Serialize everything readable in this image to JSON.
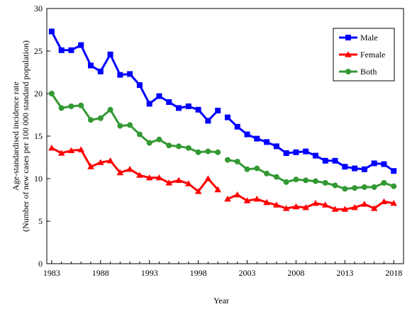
{
  "chart_data": {
    "type": "line",
    "title": "",
    "xlabel": "Year",
    "ylabel_lines": [
      "Age-standardised incidence rate",
      "(Number of new cases per 100 000 standard population)"
    ],
    "xlim": [
      1982.5,
      2019
    ],
    "ylim": [
      0,
      30
    ],
    "yticks": [
      0,
      5,
      10,
      15,
      20,
      25,
      30
    ],
    "xticks": [
      1983,
      1988,
      1993,
      1998,
      2003,
      2008,
      2013,
      2018
    ],
    "legend_position": "top-right",
    "grid": false,
    "series": [
      {
        "name": "Male",
        "color": "#0000ff",
        "marker": "square",
        "segments": [
          [
            [
              1983,
              27.3
            ],
            [
              1984,
              25.1
            ],
            [
              1985,
              25.1
            ],
            [
              1986,
              25.7
            ],
            [
              1987,
              23.3
            ],
            [
              1988,
              22.6
            ],
            [
              1989,
              24.6
            ],
            [
              1990,
              22.2
            ],
            [
              1991,
              22.3
            ],
            [
              1992,
              21.0
            ],
            [
              1993,
              18.8
            ],
            [
              1994,
              19.7
            ],
            [
              1995,
              19.0
            ],
            [
              1996,
              18.3
            ],
            [
              1997,
              18.5
            ],
            [
              1998,
              18.1
            ],
            [
              1999,
              16.8
            ],
            [
              2000,
              18.0
            ]
          ],
          [
            [
              2001,
              17.2
            ],
            [
              2002,
              16.1
            ],
            [
              2003,
              15.2
            ],
            [
              2004,
              14.7
            ],
            [
              2005,
              14.3
            ],
            [
              2006,
              13.8
            ],
            [
              2007,
              13.0
            ],
            [
              2008,
              13.1
            ],
            [
              2009,
              13.2
            ],
            [
              2010,
              12.7
            ],
            [
              2011,
              12.1
            ],
            [
              2012,
              12.1
            ],
            [
              2013,
              11.4
            ],
            [
              2014,
              11.2
            ],
            [
              2015,
              11.1
            ],
            [
              2016,
              11.8
            ],
            [
              2017,
              11.7
            ],
            [
              2018,
              10.9
            ]
          ]
        ]
      },
      {
        "name": "Female",
        "color": "#ff0000",
        "marker": "triangle",
        "segments": [
          [
            [
              1983,
              13.6
            ],
            [
              1984,
              13.0
            ],
            [
              1985,
              13.3
            ],
            [
              1986,
              13.4
            ],
            [
              1987,
              11.4
            ],
            [
              1988,
              11.9
            ],
            [
              1989,
              12.1
            ],
            [
              1990,
              10.7
            ],
            [
              1991,
              11.1
            ],
            [
              1992,
              10.4
            ],
            [
              1993,
              10.1
            ],
            [
              1994,
              10.1
            ],
            [
              1995,
              9.5
            ],
            [
              1996,
              9.8
            ],
            [
              1997,
              9.4
            ],
            [
              1998,
              8.5
            ],
            [
              1999,
              10.0
            ],
            [
              2000,
              8.7
            ]
          ],
          [
            [
              2001,
              7.6
            ],
            [
              2002,
              8.1
            ],
            [
              2003,
              7.4
            ],
            [
              2004,
              7.6
            ],
            [
              2005,
              7.2
            ],
            [
              2006,
              6.9
            ],
            [
              2007,
              6.5
            ],
            [
              2008,
              6.7
            ],
            [
              2009,
              6.6
            ],
            [
              2010,
              7.1
            ],
            [
              2011,
              6.9
            ],
            [
              2012,
              6.4
            ],
            [
              2013,
              6.4
            ],
            [
              2014,
              6.6
            ],
            [
              2015,
              7.0
            ],
            [
              2016,
              6.5
            ],
            [
              2017,
              7.3
            ],
            [
              2018,
              7.1
            ]
          ]
        ]
      },
      {
        "name": "Both",
        "color": "#339933",
        "marker": "circle",
        "segments": [
          [
            [
              1983,
              20.0
            ],
            [
              1984,
              18.3
            ],
            [
              1985,
              18.5
            ],
            [
              1986,
              18.6
            ],
            [
              1987,
              16.9
            ],
            [
              1988,
              17.1
            ],
            [
              1989,
              18.1
            ],
            [
              1990,
              16.2
            ],
            [
              1991,
              16.3
            ],
            [
              1992,
              15.2
            ],
            [
              1993,
              14.2
            ],
            [
              1994,
              14.6
            ],
            [
              1995,
              13.9
            ],
            [
              1996,
              13.8
            ],
            [
              1997,
              13.6
            ],
            [
              1998,
              13.1
            ],
            [
              1999,
              13.2
            ],
            [
              2000,
              13.1
            ]
          ],
          [
            [
              2001,
              12.2
            ],
            [
              2002,
              12.0
            ],
            [
              2003,
              11.1
            ],
            [
              2004,
              11.2
            ],
            [
              2005,
              10.6
            ],
            [
              2006,
              10.2
            ],
            [
              2007,
              9.6
            ],
            [
              2008,
              9.9
            ],
            [
              2009,
              9.8
            ],
            [
              2010,
              9.7
            ],
            [
              2011,
              9.5
            ],
            [
              2012,
              9.2
            ],
            [
              2013,
              8.8
            ],
            [
              2014,
              8.9
            ],
            [
              2015,
              9.0
            ],
            [
              2016,
              9.0
            ],
            [
              2017,
              9.5
            ],
            [
              2018,
              9.1
            ]
          ]
        ]
      }
    ]
  }
}
